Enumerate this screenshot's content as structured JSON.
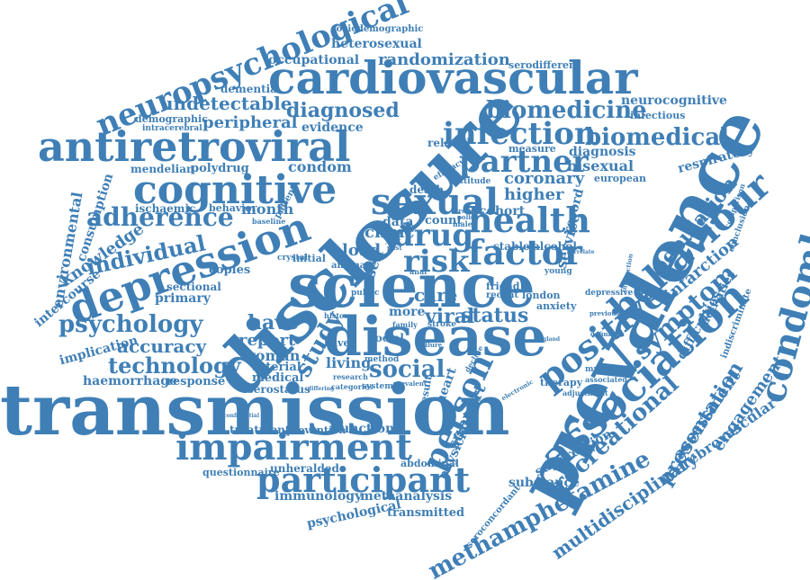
{
  "colors": {
    "word": "#3f7fb6",
    "background": "#ffffff"
  },
  "words": [
    "transmission",
    "prevalence",
    "disclosure",
    "science",
    "disease",
    "cardiovascular",
    "antiretroviral",
    "cognitive",
    "depression",
    "impairment",
    "participant",
    "association",
    "behaviour",
    "condomless",
    "socioeconomic",
    "positive",
    "person",
    "sexual",
    "health",
    "drug",
    "factor",
    "risk",
    "infection",
    "partner",
    "neuropsychological",
    "biomedicine",
    "biomedical",
    "adherence",
    "individual",
    "psychology",
    "technology",
    "symptom",
    "population",
    "recreational",
    "methamphetamine",
    "multidisciplinary",
    "presentation",
    "assessment",
    "engagement",
    "cerebrovascular",
    "social",
    "study",
    "status",
    "viral",
    "care",
    "have",
    "accuracy",
    "knowledge",
    "consumption",
    "environmental",
    "intercourse",
    "implication",
    "haemorrhage",
    "response",
    "woman",
    "report",
    "arterial",
    "medical",
    "serostatus",
    "treatment",
    "prevention",
    "function",
    "unheralded",
    "questionnaire",
    "immunology",
    "metaanalysis",
    "psychological",
    "transmitted",
    "seroconcordant",
    "substance",
    "suppression",
    "infarction",
    "difficulties",
    "activities",
    "indiscriminate",
    "respiratory",
    "european",
    "bisexual",
    "diagnosis",
    "coronary",
    "higher",
    "cohort",
    "service",
    "record",
    "diagnosed",
    "evidence",
    "condom",
    "month",
    "mendelian",
    "polydrug",
    "ischaemic",
    "behavior",
    "demographic",
    "intracerebral",
    "peripheral",
    "undetectable",
    "dementia",
    "occupational",
    "heterosexual",
    "randomization",
    "serodifferent",
    "sociodemographic",
    "neurocognitive",
    "infectious",
    "related",
    "measure",
    "clinic",
    "count",
    "load",
    "self",
    "data",
    "living",
    "social",
    "more",
    "have",
    "stable",
    "alcohol",
    "friend",
    "recent",
    "london",
    "anxiety",
    "depressive",
    "copies",
    "primary",
    "sectional",
    "initial",
    "crystal",
    "angina",
    "public",
    "stroke",
    "family",
    "history",
    "method",
    "system",
    "research",
    "categories",
    "heart",
    "result",
    "support",
    "physician",
    "abdominal",
    "multicenter",
    "associated",
    "therapy",
    "adjustment",
    "young",
    "death",
    "attitude",
    "efficacy",
    "baseline",
    "anal",
    "male",
    "year",
    "past",
    "failure",
    "decline",
    "cross",
    "policy",
    "electronic",
    "england",
    "comparison",
    "conclusion",
    "interaction",
    "previous",
    "definition",
    "correlate",
    "prevalent",
    "differing",
    "confidential",
    "patient"
  ]
}
